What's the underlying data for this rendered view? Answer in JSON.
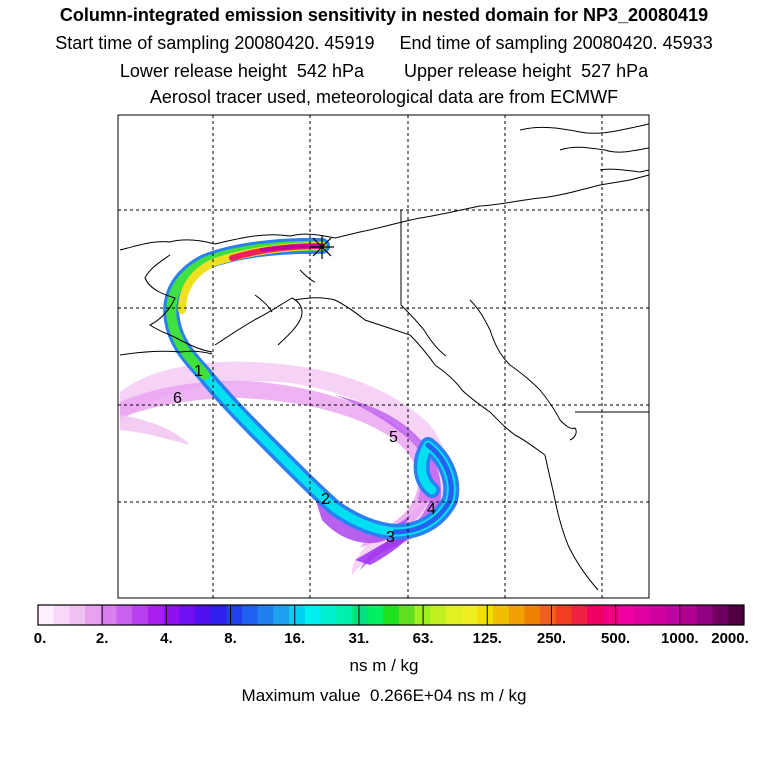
{
  "header": {
    "title": "Column-integrated emission sensitivity in nested domain for NP3_20080419",
    "sampling_line": "Start time of sampling 20080420. 45919     End time of sampling 20080420. 45933",
    "release_line": "Lower release height  542 hPa        Upper release height  527 hPa",
    "source_line": "Aerosol tracer used, meteorological data are from ECMWF"
  },
  "map": {
    "day_markers": [
      "1",
      "2",
      "3",
      "4",
      "5",
      "6"
    ],
    "release_marker_icon": "asterisk-icon"
  },
  "colorbar": {
    "tick_labels": [
      "0.",
      "2.",
      "4.",
      "8.",
      "16.",
      "31.",
      "63.",
      "125.",
      "250.",
      "500.",
      "1000.",
      "2000."
    ],
    "units": "ns m / kg",
    "colors": [
      "#fff0ff",
      "#f8d8f8",
      "#f0c0f0",
      "#e8a0f0",
      "#d880f0",
      "#c860f0",
      "#b840f0",
      "#a820f0",
      "#9010f0",
      "#7010f0",
      "#5010f0",
      "#3020f0",
      "#2040f0",
      "#2060f0",
      "#2080f0",
      "#20a0f0",
      "#00d0f0",
      "#00f0f0",
      "#00f0d0",
      "#00f0b0",
      "#00e080",
      "#00f060",
      "#20e020",
      "#60e020",
      "#a0f020",
      "#c0f020",
      "#e0f020",
      "#f0f020",
      "#f0e000",
      "#f0c000",
      "#f0a000",
      "#f08000",
      "#f06020",
      "#f04020",
      "#f02040",
      "#f00060",
      "#f00080",
      "#f000a0",
      "#e000a0",
      "#d000a0",
      "#c000a0",
      "#b00090",
      "#900080",
      "#700060",
      "#500040"
    ]
  },
  "footer": {
    "max_value": "Maximum value  0.266E+04 ns m / kg"
  }
}
